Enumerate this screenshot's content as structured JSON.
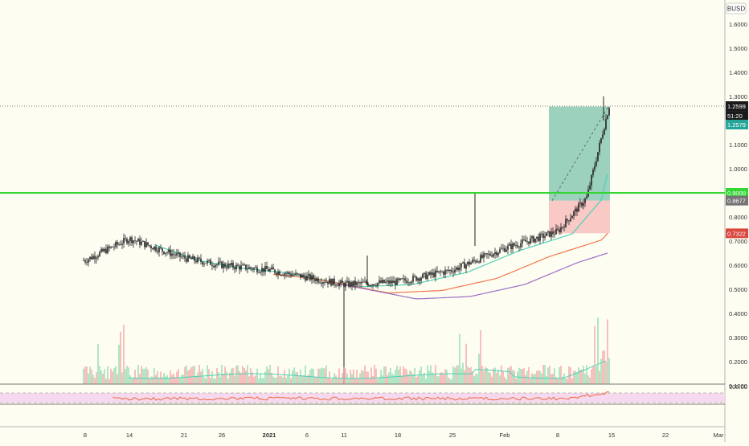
{
  "symbol_badge": "BUSD",
  "colors": {
    "background": "#fefdf2",
    "grid_rule": "#999999",
    "axis_text": "#333333",
    "candle": "#222222",
    "green_level": "#33d633",
    "ema_fast": "#4fd1b8",
    "ema_mid": "#f0784a",
    "ema_slow": "#9b6fc4",
    "rsi_line": "#ec6a3c",
    "rsi_band": "#f6d9ee",
    "profit_zone": "#3aa58a",
    "loss_zone": "#f7b2b2",
    "vol_up": "#6fd29b",
    "vol_down": "#f08a8a",
    "last_price_tag": "#1a1a1a",
    "green_tag": "#26a69a",
    "red_tag": "#d9493f",
    "gray_tag": "#757575"
  },
  "price_axis": {
    "min": 0.1,
    "max": 1.7,
    "ticks": [
      "1.6000",
      "1.5000",
      "1.4000",
      "1.3000",
      "1.2000",
      "1.1000",
      "1.0000",
      "0.9000",
      "0.8000",
      "0.7000",
      "0.6000",
      "0.5000",
      "0.4000",
      "0.3000",
      "0.2000",
      "0.1000"
    ]
  },
  "time_axis": {
    "labels": [
      "8",
      "14",
      "21",
      "26",
      "2021",
      "6",
      "11",
      "18",
      "25",
      "Feb",
      "8",
      "15",
      "22",
      "Mar"
    ]
  },
  "price_tags": {
    "last_price": "1.2599",
    "countdown": "51:20",
    "target": "1.2579",
    "level": "0.9000",
    "entry": "0.8677",
    "stop": "0.7322"
  },
  "rsi": {
    "label": "100.00",
    "band_upper": 70,
    "band_lower": 30
  },
  "chart_data": {
    "type": "candlestick",
    "description_points": {
      "x": [
        "Dec 8",
        "Dec 14",
        "Dec 21",
        "Dec 26",
        "Jan 1",
        "Jan 6",
        "Jan 11",
        "Jan 18",
        "Jan 25",
        "Feb 1",
        "Feb 8",
        "Feb 12",
        "Feb 14"
      ],
      "close": [
        0.62,
        0.71,
        0.63,
        0.6,
        0.58,
        0.55,
        0.52,
        0.53,
        0.58,
        0.67,
        0.74,
        0.88,
        1.26
      ]
    },
    "horizontal_level": 0.9,
    "last_price": 1.2599,
    "position": {
      "entry": 0.8677,
      "target": 1.2579,
      "stop": 0.7322
    },
    "ylim": [
      0.1,
      1.7
    ]
  }
}
